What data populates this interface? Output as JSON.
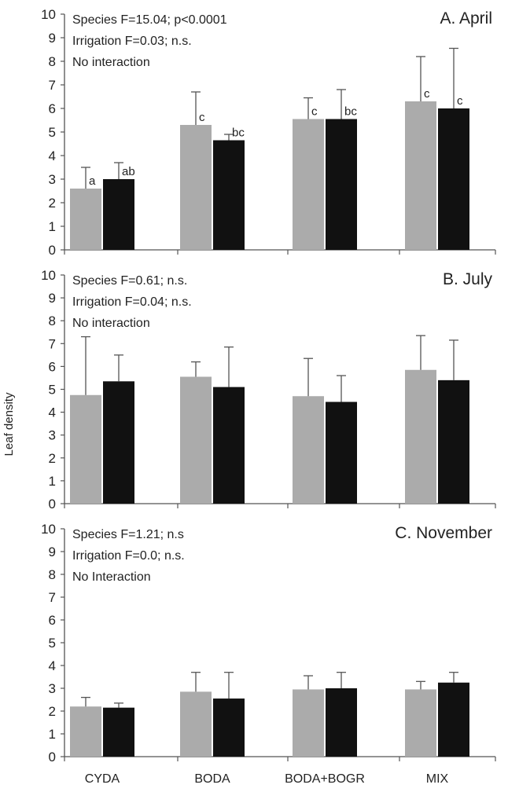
{
  "figure": {
    "ylabel": "Leaf density",
    "categories": [
      "CYDA",
      "BODA",
      "BODA+BOGR",
      "MIX"
    ]
  },
  "colors": {
    "series_a": "#ababab",
    "series_b": "#111111",
    "axis": "#555555",
    "error_bar": "#555555"
  },
  "chart_data": [
    {
      "type": "bar",
      "title": "A. April",
      "annotations": [
        "Species F=15.04;  p<0.0001",
        "Irrigation F=0.03; n.s.",
        "No interaction"
      ],
      "categories": [
        "CYDA",
        "BODA",
        "BODA+BOGR",
        "MIX"
      ],
      "ylim": [
        0,
        10
      ],
      "yticks": [
        0,
        1,
        2,
        3,
        4,
        5,
        6,
        7,
        8,
        9,
        10
      ],
      "series": [
        {
          "values": [
            2.6,
            5.3,
            5.55,
            6.3
          ],
          "errors": [
            0.9,
            1.4,
            0.9,
            1.9
          ],
          "letters": [
            "a",
            "c",
            "c",
            "c"
          ]
        },
        {
          "values": [
            3.0,
            4.65,
            5.55,
            6.0
          ],
          "errors": [
            0.7,
            0.25,
            1.25,
            2.55
          ],
          "letters": [
            "ab",
            "bc",
            "bc",
            "c"
          ]
        }
      ]
    },
    {
      "type": "bar",
      "title": "B. July",
      "annotations": [
        "Species F=0.61; n.s.",
        "Irrigation F=0.04; n.s.",
        "No interaction"
      ],
      "categories": [
        "CYDA",
        "BODA",
        "BODA+BOGR",
        "MIX"
      ],
      "ylim": [
        0,
        10
      ],
      "yticks": [
        0,
        1,
        2,
        3,
        4,
        5,
        6,
        7,
        8,
        9,
        10
      ],
      "series": [
        {
          "values": [
            4.75,
            5.55,
            4.7,
            5.85
          ],
          "errors": [
            2.55,
            0.65,
            1.65,
            1.5
          ]
        },
        {
          "values": [
            5.35,
            5.1,
            4.45,
            5.4
          ],
          "errors": [
            1.15,
            1.75,
            1.15,
            1.75
          ]
        }
      ]
    },
    {
      "type": "bar",
      "title": "C. November",
      "annotations": [
        "Species F=1.21; n.s",
        "Irrigation F=0.0; n.s.",
        "No Interaction"
      ],
      "categories": [
        "CYDA",
        "BODA",
        "BODA+BOGR",
        "MIX"
      ],
      "ylim": [
        0,
        10
      ],
      "yticks": [
        0,
        1,
        2,
        3,
        4,
        5,
        6,
        7,
        8,
        9,
        10
      ],
      "series": [
        {
          "values": [
            2.2,
            2.85,
            2.95,
            2.95
          ],
          "errors": [
            0.4,
            0.85,
            0.6,
            0.35
          ]
        },
        {
          "values": [
            2.15,
            2.55,
            3.0,
            3.25
          ],
          "errors": [
            0.2,
            1.15,
            0.7,
            0.45
          ]
        }
      ]
    }
  ]
}
